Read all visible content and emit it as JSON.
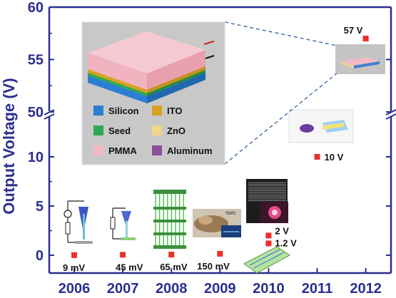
{
  "chart_data": {
    "type": "scatter",
    "title": "",
    "xlabel": "",
    "ylabel": "Output Voltage (V)",
    "x_categories": [
      "2006",
      "2007",
      "2008",
      "2009",
      "2010",
      "2011",
      "2012"
    ],
    "y_axis_break": true,
    "y_lower_ticks": [
      "0",
      "5",
      "10"
    ],
    "y_upper_ticks": [
      "50",
      "55",
      "60"
    ],
    "series": [
      {
        "color": "#e8312a",
        "points": [
          {
            "year": "2006",
            "value": 0.009,
            "label": "9 mV"
          },
          {
            "year": "2007",
            "value": 0.045,
            "label": "45 mV"
          },
          {
            "year": "2008",
            "value": 0.065,
            "label": "65 mV"
          },
          {
            "year": "2009",
            "value": 0.15,
            "label": "150 mV"
          },
          {
            "year": "2010",
            "value": 1.2,
            "label": "1.2 V"
          },
          {
            "year": "2010",
            "value": 2,
            "label": "2 V"
          },
          {
            "year": "2011",
            "value": 10,
            "label": "10 V"
          },
          {
            "year": "2012",
            "value": 57,
            "label": "57 V"
          }
        ]
      }
    ],
    "legend": {
      "items": [
        {
          "label": "Silicon",
          "color": "#2a7fd4"
        },
        {
          "label": "ITO",
          "color": "#d4a21f"
        },
        {
          "label": "Seed",
          "color": "#2fa84f"
        },
        {
          "label": "ZnO",
          "color": "#f0d58a"
        },
        {
          "label": "PMMA",
          "color": "#f3b8c4"
        },
        {
          "label": "Aluminum",
          "color": "#8a4f9a"
        }
      ]
    },
    "inset_notes": {
      "swg": "SWG"
    },
    "colors": {
      "axis": "#2b2f8f",
      "marker": "#e8312a",
      "inset_background": "#bfbfbf"
    }
  }
}
